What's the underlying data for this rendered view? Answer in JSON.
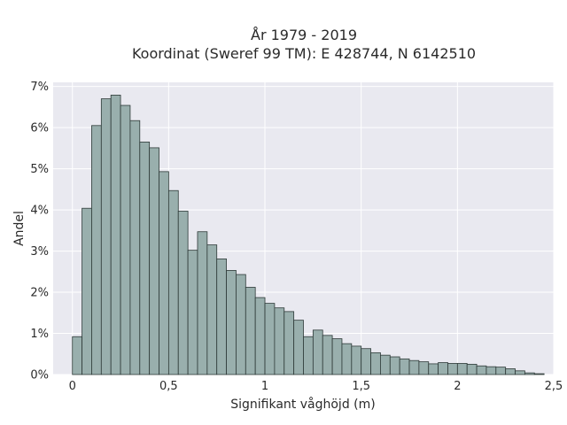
{
  "chart_data": {
    "type": "bar",
    "title_line1": "År 1979 - 2019",
    "title_line2": "Koordinat (Sweref 99 TM): E 428744, N 6142510",
    "xlabel": "Signifikant våghöjd (m)",
    "ylabel": "Andel",
    "xlim": [
      -0.1,
      2.5
    ],
    "ylim": [
      0,
      0.071
    ],
    "bin_width": 0.05,
    "bin_start": 0,
    "values": [
      0.0092,
      0.0404,
      0.0605,
      0.067,
      0.0679,
      0.0654,
      0.0617,
      0.0565,
      0.0551,
      0.0493,
      0.0447,
      0.0397,
      0.0302,
      0.0347,
      0.0315,
      0.0281,
      0.0253,
      0.0243,
      0.0212,
      0.0187,
      0.0173,
      0.0162,
      0.0153,
      0.0132,
      0.0092,
      0.0108,
      0.0095,
      0.0087,
      0.0075,
      0.0069,
      0.0063,
      0.0053,
      0.0047,
      0.0043,
      0.0038,
      0.0034,
      0.0031,
      0.0026,
      0.0029,
      0.0027,
      0.0027,
      0.0025,
      0.0021,
      0.0019,
      0.0018,
      0.0014,
      0.0009,
      0.0004,
      0.0002
    ],
    "x_ticks": [
      {
        "v": 0,
        "label": "0"
      },
      {
        "v": 0.5,
        "label": "0,5"
      },
      {
        "v": 1,
        "label": "1"
      },
      {
        "v": 1.5,
        "label": "1,5"
      },
      {
        "v": 2,
        "label": "2"
      },
      {
        "v": 2.5,
        "label": "2,5"
      }
    ],
    "y_ticks": [
      {
        "v": 0,
        "label": "0%"
      },
      {
        "v": 0.01,
        "label": "1%"
      },
      {
        "v": 0.02,
        "label": "2%"
      },
      {
        "v": 0.03,
        "label": "3%"
      },
      {
        "v": 0.04,
        "label": "4%"
      },
      {
        "v": 0.05,
        "label": "5%"
      },
      {
        "v": 0.06,
        "label": "6%"
      },
      {
        "v": 0.07,
        "label": "7%"
      }
    ],
    "grid": true,
    "colors": {
      "bar_fill": "#99afad",
      "bar_stroke": "#2e3a38",
      "plot_bg": "#e9e9f0",
      "grid": "#ffffff"
    }
  }
}
